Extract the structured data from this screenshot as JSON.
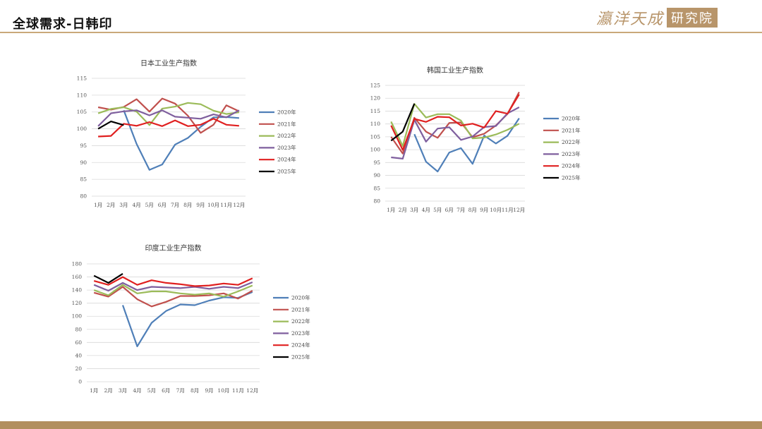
{
  "header": {
    "title": "全球需求-日韩印",
    "logo_script": "瀛洋天成",
    "logo_box": "研究院"
  },
  "colors": {
    "accent": "#b8956a",
    "rule": "#c9a97a",
    "footer": "#b28f5e"
  },
  "chart_data": [
    {
      "type": "line",
      "title": "日本工业生产指数",
      "categories": [
        "1月",
        "2月",
        "3月",
        "4月",
        "5月",
        "6月",
        "7月",
        "8月",
        "9月",
        "10月",
        "11月",
        "12月"
      ],
      "ylim": [
        80,
        115
      ],
      "yticks": [
        80,
        85,
        90,
        95,
        100,
        105,
        110,
        115
      ],
      "grid": true,
      "legend": "right",
      "series": [
        {
          "name": "2020年",
          "color": "#4f7fb8",
          "values": [
            null,
            null,
            105.5,
            95.5,
            87.8,
            89.4,
            95.3,
            97.3,
            100.6,
            103.4,
            103.5,
            103.2
          ]
        },
        {
          "name": "2021年",
          "color": "#c0504d",
          "values": [
            106.4,
            105.7,
            106.5,
            108.8,
            105.1,
            109.0,
            107.5,
            103.9,
            98.8,
            101.2,
            107.0,
            105.2
          ]
        },
        {
          "name": "2022年",
          "color": "#9bbb59",
          "values": [
            104.6,
            105.9,
            106.4,
            105.1,
            101.1,
            106.0,
            106.6,
            107.7,
            107.3,
            105.4,
            104.4,
            104.9
          ]
        },
        {
          "name": "2023年",
          "color": "#7f5f9e",
          "values": [
            100.8,
            104.6,
            105.2,
            105.5,
            104.0,
            105.5,
            103.6,
            103.3,
            103.0,
            104.3,
            103.4,
            105.5
          ]
        },
        {
          "name": "2024年",
          "color": "#e02020",
          "values": [
            97.7,
            97.9,
            101.5,
            100.9,
            102.0,
            100.8,
            102.5,
            100.8,
            101.2,
            103.0,
            101.2,
            100.9
          ]
        },
        {
          "name": "2025年",
          "color": "#000000",
          "values": [
            100.0,
            102.2,
            101.1,
            null,
            null,
            null,
            null,
            null,
            null,
            null,
            null,
            null
          ]
        }
      ]
    },
    {
      "type": "line",
      "title": "韩国工业生产指数",
      "categories": [
        "1月",
        "2月",
        "3月",
        "4月",
        "5月",
        "6月",
        "7月",
        "8月",
        "9月",
        "10月",
        "11月",
        "12月"
      ],
      "ylim": [
        80,
        125
      ],
      "yticks": [
        80,
        85,
        90,
        95,
        100,
        105,
        110,
        115,
        120,
        125
      ],
      "grid": true,
      "legend": "right",
      "series": [
        {
          "name": "2020年",
          "color": "#4f7fb8",
          "values": [
            null,
            null,
            106.0,
            95.3,
            91.5,
            98.9,
            100.6,
            94.5,
            105.5,
            102.4,
            105.4,
            112.2
          ]
        },
        {
          "name": "2021年",
          "color": "#c0504d",
          "values": [
            105.0,
            98.5,
            112.4,
            107.0,
            104.6,
            110.4,
            110.6,
            104.8,
            106.2,
            109.4,
            113.9,
            122.4
          ]
        },
        {
          "name": "2022年",
          "color": "#9bbb59",
          "values": [
            110.9,
            101.4,
            117.8,
            112.5,
            113.8,
            113.8,
            111.3,
            104.4,
            104.7,
            105.9,
            107.7,
            110.1
          ]
        },
        {
          "name": "2023年",
          "color": "#7f5f9e",
          "values": [
            97.0,
            96.5,
            111.6,
            103.1,
            108.2,
            108.7,
            103.8,
            105.1,
            108.8,
            109.2,
            114.1,
            116.5
          ]
        },
        {
          "name": "2024年",
          "color": "#e02020",
          "values": [
            109.4,
            99.9,
            112.0,
            110.8,
            112.8,
            112.6,
            109.4,
            110.1,
            108.6,
            115.0,
            114.0,
            121.5
          ]
        },
        {
          "name": "2025年",
          "color": "#000000",
          "values": [
            103.5,
            107.0,
            117.9,
            null,
            null,
            null,
            null,
            null,
            null,
            null,
            null,
            null
          ]
        }
      ]
    },
    {
      "type": "line",
      "title": "印度工业生产指数",
      "categories": [
        "1月",
        "2月",
        "3月",
        "4月",
        "5月",
        "6月",
        "7月",
        "8月",
        "9月",
        "10月",
        "11月",
        "12月"
      ],
      "ylim": [
        0,
        180
      ],
      "yticks": [
        0,
        20,
        40,
        60,
        80,
        100,
        120,
        140,
        160,
        180
      ],
      "grid": true,
      "legend": "right",
      "series": [
        {
          "name": "2020年",
          "color": "#4f7fb8",
          "values": [
            null,
            null,
            117,
            54,
            90,
            108,
            118,
            117,
            124,
            129,
            128,
            137
          ]
        },
        {
          "name": "2021年",
          "color": "#c0504d",
          "values": [
            136,
            130,
            145,
            126,
            115,
            122,
            131,
            131,
            132,
            135,
            127,
            139
          ]
        },
        {
          "name": "2022年",
          "color": "#9bbb59",
          "values": [
            140,
            132,
            148,
            135,
            138,
            138,
            135,
            133,
            135,
            130,
            138,
            147
          ]
        },
        {
          "name": "2023年",
          "color": "#7f5f9e",
          "values": [
            148,
            139,
            151,
            140,
            145,
            144,
            143,
            145,
            142,
            145,
            143,
            152
          ]
        },
        {
          "name": "2024年",
          "color": "#e02020",
          "values": [
            154,
            148,
            160,
            148,
            155,
            151,
            149,
            146,
            147,
            150,
            148,
            158
          ]
        },
        {
          "name": "2025年",
          "color": "#000000",
          "values": [
            162,
            151,
            165,
            null,
            null,
            null,
            null,
            null,
            null,
            null,
            null,
            null
          ]
        }
      ]
    }
  ]
}
